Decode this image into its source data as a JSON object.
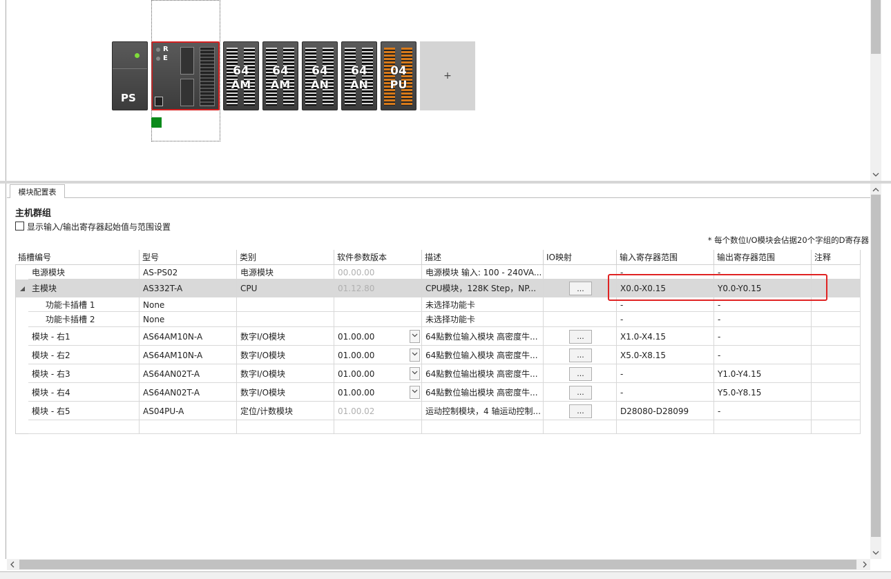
{
  "rack": {
    "modules": [
      {
        "label": "PS"
      },
      {
        "leds": [
          "R",
          "E"
        ]
      },
      {
        "top": "64",
        "bottom": "AM"
      },
      {
        "top": "64",
        "bottom": "AM"
      },
      {
        "top": "64",
        "bottom": "AN"
      },
      {
        "top": "64",
        "bottom": "AN"
      },
      {
        "top": "04",
        "bottom": "PU"
      }
    ],
    "add": "+"
  },
  "tab": "模块配置表",
  "group": "主机群组",
  "checkbox_label": "显示输入/输出寄存器起始值与范围设置",
  "note": "* 每个数位I/O模块会佔据20个字组的D寄存器",
  "table": {
    "columns": [
      "插槽编号",
      "型号",
      "类别",
      "软件参数版本",
      "描述",
      "IO映射",
      "输入寄存器范围",
      "输出寄存器范围",
      "注释"
    ],
    "rows": [
      {
        "slot": "电源模块",
        "model": "AS-PS02",
        "category": "电源模块",
        "version": "00.00.00",
        "description": "电源模块 输入: 100 - 240VA...",
        "input": "-",
        "output": "-"
      },
      {
        "slot": "主模块",
        "model": "AS332T-A",
        "category": "CPU",
        "version": "01.12.80",
        "description": "CPU模块，128K Step，NP...",
        "io": "...",
        "input": "X0.0-X0.15",
        "output": "Y0.0-Y0.15"
      },
      {
        "slot": "功能卡插槽 1",
        "model": "None",
        "description": "未选择功能卡",
        "input": "-",
        "output": "-"
      },
      {
        "slot": "功能卡插槽 2",
        "model": "None",
        "description": "未选择功能卡",
        "input": "-",
        "output": "-"
      },
      {
        "slot": "模块 - 右1",
        "model": "AS64AM10N-A",
        "category": "数字I/O模块",
        "version": "01.00.00",
        "description": "64點數位输入模块 高密度牛...",
        "io": "...",
        "input": "X1.0-X4.15",
        "output": "-"
      },
      {
        "slot": "模块 - 右2",
        "model": "AS64AM10N-A",
        "category": "数字I/O模块",
        "version": "01.00.00",
        "description": "64點數位输入模块 高密度牛...",
        "io": "...",
        "input": "X5.0-X8.15",
        "output": "-"
      },
      {
        "slot": "模块 - 右3",
        "model": "AS64AN02T-A",
        "category": "数字I/O模块",
        "version": "01.00.00",
        "description": "64點數位输出模块 高密度牛...",
        "io": "...",
        "input": "-",
        "output": "Y1.0-Y4.15"
      },
      {
        "slot": "模块 - 右4",
        "model": "AS64AN02T-A",
        "category": "数字I/O模块",
        "version": "01.00.00",
        "description": "64點數位输出模块 高密度牛...",
        "io": "...",
        "input": "-",
        "output": "Y5.0-Y8.15"
      },
      {
        "slot": "模块 - 右5",
        "model": "AS04PU-A",
        "category": "定位/计数模块",
        "version": "01.00.02",
        "description": "运动控制模块，4 轴运动控制...",
        "io": "...",
        "input": "D28080-D28099",
        "output": "-"
      }
    ]
  }
}
